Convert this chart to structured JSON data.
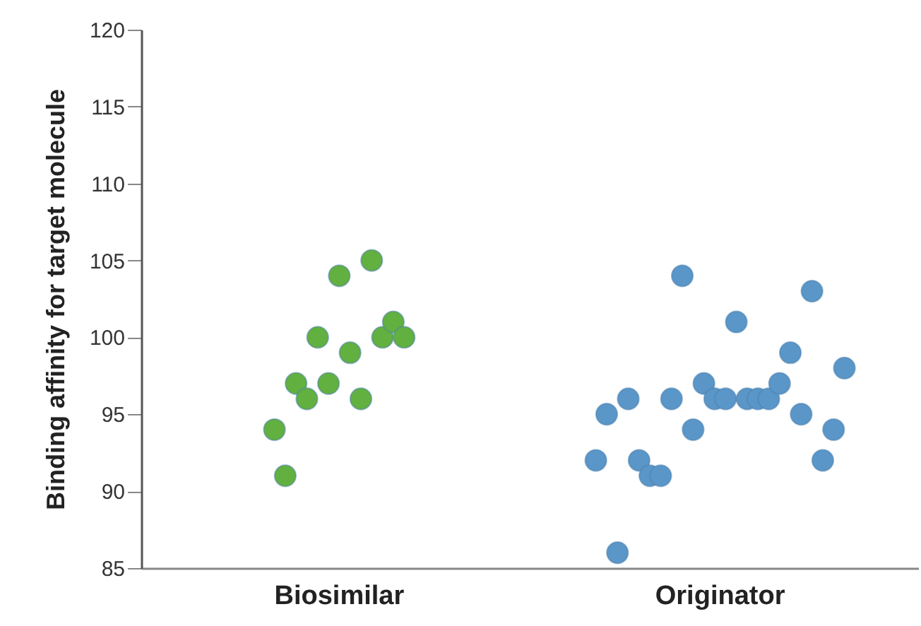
{
  "chart_data": {
    "type": "scatter",
    "ylabel": "Binding affinity for target molecule",
    "categories": [
      "Biosimilar",
      "Originator"
    ],
    "ylim": [
      85,
      120
    ],
    "yticks": [
      85,
      90,
      95,
      100,
      105,
      110,
      115,
      120
    ],
    "grid": false,
    "legend": false,
    "marker": "circle",
    "series": [
      {
        "color": "#62b03f",
        "x": [
          "Biosimilar",
          "Biosimilar",
          "Biosimilar",
          "Biosimilar",
          "Biosimilar",
          "Biosimilar",
          "Biosimilar",
          "Biosimilar",
          "Biosimilar",
          "Biosimilar",
          "Biosimilar",
          "Biosimilar",
          "Biosimilar"
        ],
        "values": [
          94,
          91,
          97,
          96,
          100,
          97,
          104,
          99,
          96,
          105,
          100,
          101,
          100
        ]
      },
      {
        "color": "#5b96c8",
        "x": [
          "Originator",
          "Originator",
          "Originator",
          "Originator",
          "Originator",
          "Originator",
          "Originator",
          "Originator",
          "Originator",
          "Originator",
          "Originator",
          "Originator",
          "Originator",
          "Originator",
          "Originator",
          "Originator",
          "Originator",
          "Originator",
          "Originator",
          "Originator",
          "Originator",
          "Originator",
          "Originator",
          "Originator"
        ],
        "values": [
          92,
          95,
          86,
          96,
          92,
          91,
          91,
          96,
          104,
          94,
          97,
          96,
          96,
          101,
          96,
          96,
          96,
          97,
          99,
          95,
          103,
          92,
          94,
          98
        ]
      }
    ]
  }
}
